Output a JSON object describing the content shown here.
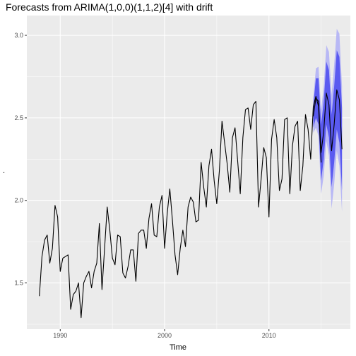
{
  "chart_data": {
    "type": "line",
    "title": "Forecasts from ARIMA(1,0,0)(1,1,2)[4] with drift",
    "xlabel": "Time",
    "ylabel": ".",
    "xlim": [
      1986.8,
      2017.8
    ],
    "ylim": [
      1.22,
      3.12
    ],
    "x_ticks": [
      1990,
      2000,
      2010
    ],
    "x_tick_labels": [
      "1990",
      "2000",
      "2010"
    ],
    "y_ticks": [
      1.5,
      2.0,
      2.5,
      3.0
    ],
    "y_tick_labels": [
      "1.5",
      "2.0",
      "2.5",
      "3.0"
    ],
    "grid": true,
    "background": "#ebebeb",
    "colors": {
      "history": "#000000",
      "forecast": "#000000",
      "ci_80": "#5a5af0",
      "ci_95": "#b8b8f5"
    },
    "series": [
      {
        "role": "history",
        "start": 1988.0,
        "frequency": 4,
        "values": [
          1.42,
          1.66,
          1.76,
          1.79,
          1.62,
          1.71,
          1.97,
          1.9,
          1.57,
          1.65,
          1.66,
          1.67,
          1.34,
          1.43,
          1.45,
          1.5,
          1.29,
          1.5,
          1.54,
          1.57,
          1.47,
          1.57,
          1.62,
          1.86,
          1.46,
          1.71,
          1.96,
          1.82,
          1.65,
          1.61,
          1.79,
          1.78,
          1.56,
          1.53,
          1.6,
          1.7,
          1.7,
          1.51,
          1.8,
          1.82,
          1.82,
          1.71,
          1.89,
          1.98,
          1.79,
          1.78,
          1.96,
          2.03,
          1.71,
          1.92,
          2.07,
          1.88,
          1.67,
          1.55,
          1.71,
          1.82,
          1.72,
          1.96,
          2.02,
          1.99,
          1.87,
          1.88,
          2.23,
          2.08,
          1.96,
          2.21,
          2.31,
          2.12,
          1.98,
          2.18,
          2.48,
          2.35,
          2.22,
          2.05,
          2.38,
          2.44,
          2.24,
          2.04,
          2.38,
          2.55,
          2.56,
          2.43,
          2.58,
          2.6,
          1.96,
          2.13,
          2.32,
          2.26,
          1.9,
          2.37,
          2.49,
          2.38,
          2.06,
          2.13,
          2.49,
          2.5,
          2.04,
          2.33,
          2.45,
          2.48,
          2.06,
          2.21,
          2.52,
          2.43,
          2.25,
          2.57,
          2.63,
          2.57,
          2.23
        ]
      },
      {
        "role": "forecast",
        "start": 2014.25,
        "frequency": 4,
        "mean": [
          2.51,
          2.62,
          2.6,
          2.29,
          2.42,
          2.65,
          2.58,
          2.3,
          2.46,
          2.67,
          2.61,
          2.31
        ],
        "lo80": [
          2.44,
          2.5,
          2.46,
          2.12,
          2.25,
          2.46,
          2.38,
          2.08,
          2.23,
          2.43,
          2.35,
          2.06
        ],
        "hi80": [
          2.58,
          2.74,
          2.74,
          2.46,
          2.6,
          2.84,
          2.79,
          2.52,
          2.69,
          2.91,
          2.87,
          2.56
        ],
        "lo95": [
          2.41,
          2.44,
          2.39,
          2.04,
          2.15,
          2.36,
          2.27,
          1.95,
          2.1,
          2.3,
          2.21,
          1.93
        ],
        "hi95": [
          2.62,
          2.8,
          2.81,
          2.55,
          2.69,
          2.94,
          2.9,
          2.64,
          2.82,
          3.04,
          3.01,
          2.69
        ]
      }
    ]
  }
}
